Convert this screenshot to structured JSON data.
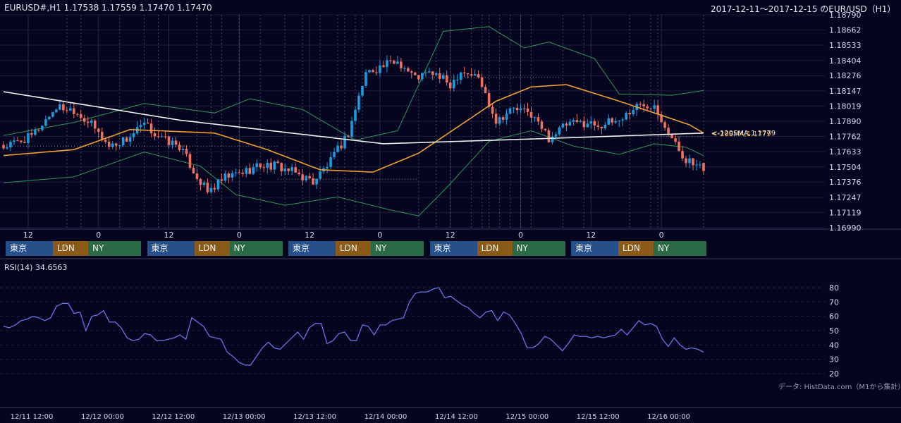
{
  "header": {
    "left": "EURUSD#,H1 1.17538 1.17559 1.17470 1.17470",
    "right": "2017-12-11～2017-12-15 のEUR/USD（H1）"
  },
  "rsi_title": "RSI(14) 34.6563",
  "credit": "データ: HistData.com（M1から集計）",
  "sma_label": "<-120SMA,1.1779",
  "sma_label_overlap": "<-20SMA,1.1779",
  "sessions": [
    "東京",
    "LDN",
    "NY"
  ],
  "colors": {
    "background": "#050520",
    "grid": "#1c1c3c",
    "bull": "#1a9ce0",
    "bear": "#ef7060",
    "sma20": "#f0a030",
    "sma120": "#f0f0f0",
    "bollinger": "#2a9a5a",
    "rsi": "#6a70e8",
    "tokyo": "#26508a",
    "ldn": "#8a5a18",
    "ny": "#2a6a44"
  },
  "chart_data": [
    {
      "type": "candlestick",
      "title": "EURUSD#,H1",
      "ylim": [
        1.1699,
        1.1879
      ],
      "y_ticks": [
        "1.18790",
        "1.18662",
        "1.18533",
        "1.18404",
        "1.18276",
        "1.18147",
        "1.18019",
        "1.17890",
        "1.17762",
        "1.17633",
        "1.17504",
        "1.17376",
        "1.17247",
        "1.17119",
        "1.16990"
      ],
      "x_ticks_top": [
        "12",
        "0",
        "12",
        "0",
        "12",
        "0",
        "12",
        "0",
        "12",
        "0"
      ],
      "last_ohlc": {
        "open": 1.17538,
        "high": 1.17559,
        "low": 1.1747,
        "close": 1.1747
      },
      "close_anchors": [
        [
          0,
          1.1767
        ],
        [
          8,
          1.1776
        ],
        [
          15,
          1.1801
        ],
        [
          20,
          1.1799
        ],
        [
          25,
          1.1786
        ],
        [
          30,
          1.1768
        ],
        [
          35,
          1.1774
        ],
        [
          40,
          1.1786
        ],
        [
          45,
          1.1774
        ],
        [
          50,
          1.1768
        ],
        [
          55,
          1.1742
        ],
        [
          58,
          1.1729
        ],
        [
          63,
          1.1741
        ],
        [
          68,
          1.1746
        ],
        [
          73,
          1.1752
        ],
        [
          78,
          1.1751
        ],
        [
          83,
          1.1745
        ],
        [
          88,
          1.1738
        ],
        [
          93,
          1.1755
        ],
        [
          98,
          1.1779
        ],
        [
          103,
          1.183
        ],
        [
          108,
          1.1836
        ],
        [
          112,
          1.184
        ],
        [
          117,
          1.1826
        ],
        [
          122,
          1.183
        ],
        [
          127,
          1.182
        ],
        [
          130,
          1.1832
        ],
        [
          135,
          1.1826
        ],
        [
          140,
          1.179
        ],
        [
          145,
          1.18
        ],
        [
          150,
          1.1795
        ],
        [
          155,
          1.1775
        ],
        [
          160,
          1.1786
        ],
        [
          165,
          1.1788
        ],
        [
          170,
          1.1786
        ],
        [
          175,
          1.179
        ],
        [
          180,
          1.1802
        ],
        [
          185,
          1.1804
        ],
        [
          190,
          1.1774
        ],
        [
          193,
          1.176
        ],
        [
          196,
          1.1752
        ],
        [
          199,
          1.1747
        ]
      ],
      "sma120": [
        [
          0,
          1.1814
        ],
        [
          50,
          1.179
        ],
        [
          108,
          1.177
        ],
        [
          150,
          1.1774
        ],
        [
          199,
          1.1779
        ]
      ],
      "sma20": [
        [
          0,
          1.176
        ],
        [
          20,
          1.1765
        ],
        [
          36,
          1.1782
        ],
        [
          60,
          1.1779
        ],
        [
          75,
          1.1765
        ],
        [
          90,
          1.1748
        ],
        [
          105,
          1.1746
        ],
        [
          118,
          1.1762
        ],
        [
          130,
          1.1786
        ],
        [
          140,
          1.1806
        ],
        [
          150,
          1.1818
        ],
        [
          160,
          1.182
        ],
        [
          175,
          1.1806
        ],
        [
          195,
          1.1786
        ],
        [
          199,
          1.1779
        ]
      ],
      "bollinger_upper": [
        [
          0,
          1.1777
        ],
        [
          20,
          1.1788
        ],
        [
          40,
          1.1804
        ],
        [
          60,
          1.1796
        ],
        [
          70,
          1.1808
        ],
        [
          85,
          1.1799
        ],
        [
          100,
          1.1773
        ],
        [
          112,
          1.1781
        ],
        [
          125,
          1.1865
        ],
        [
          138,
          1.1869
        ],
        [
          148,
          1.1851
        ],
        [
          155,
          1.1856
        ],
        [
          168,
          1.1842
        ],
        [
          175,
          1.1812
        ],
        [
          190,
          1.1811
        ],
        [
          199,
          1.1815
        ]
      ],
      "bollinger_lower": [
        [
          0,
          1.1737
        ],
        [
          20,
          1.1742
        ],
        [
          40,
          1.1763
        ],
        [
          56,
          1.1751
        ],
        [
          66,
          1.1727
        ],
        [
          80,
          1.1718
        ],
        [
          95,
          1.1725
        ],
        [
          110,
          1.1714
        ],
        [
          118,
          1.1709
        ],
        [
          126,
          1.1733
        ],
        [
          138,
          1.1772
        ],
        [
          150,
          1.1781
        ],
        [
          162,
          1.1768
        ],
        [
          175,
          1.1761
        ],
        [
          185,
          1.177
        ],
        [
          194,
          1.1767
        ],
        [
          199,
          1.176
        ]
      ]
    },
    {
      "type": "line",
      "title": "RSI(14)",
      "ylim": [
        20,
        80
      ],
      "y_ticks": [
        80,
        70,
        60,
        50,
        40,
        30,
        20
      ],
      "x_ticks": [
        "12/11 12:00",
        "12/12 00:00",
        "12/12 12:00",
        "12/13 00:00",
        "12/13 12:00",
        "12/14 00:00",
        "12/14 12:00",
        "12/15 00:00",
        "12/15 12:00",
        "12/16 00:00"
      ],
      "series": [
        {
          "name": "RSI(14)",
          "values": [
            53,
            52,
            54,
            57,
            58,
            60,
            59,
            57,
            59,
            67,
            69,
            69,
            62,
            63,
            50,
            60,
            61,
            64,
            56,
            56,
            52,
            45,
            43,
            44,
            48,
            47,
            43,
            43,
            44,
            45,
            47,
            44,
            59,
            56,
            53,
            46,
            45,
            44,
            35,
            32,
            28,
            26,
            26,
            32,
            38,
            42,
            38,
            37,
            41,
            45,
            49,
            44,
            52,
            55,
            55,
            41,
            43,
            48,
            49,
            43,
            43,
            54,
            53,
            47,
            54,
            54,
            57,
            58,
            59,
            70,
            76,
            77,
            77,
            79,
            80,
            73,
            74,
            71,
            68,
            66,
            62,
            59,
            63,
            64,
            57,
            63,
            61,
            55,
            48,
            38,
            38,
            41,
            46,
            44,
            40,
            36,
            41,
            47,
            46,
            46,
            45,
            46,
            45,
            46,
            47,
            51,
            47,
            52,
            57,
            54,
            55,
            53,
            44,
            39,
            45,
            40,
            37,
            38,
            37,
            35
          ]
        }
      ]
    }
  ]
}
